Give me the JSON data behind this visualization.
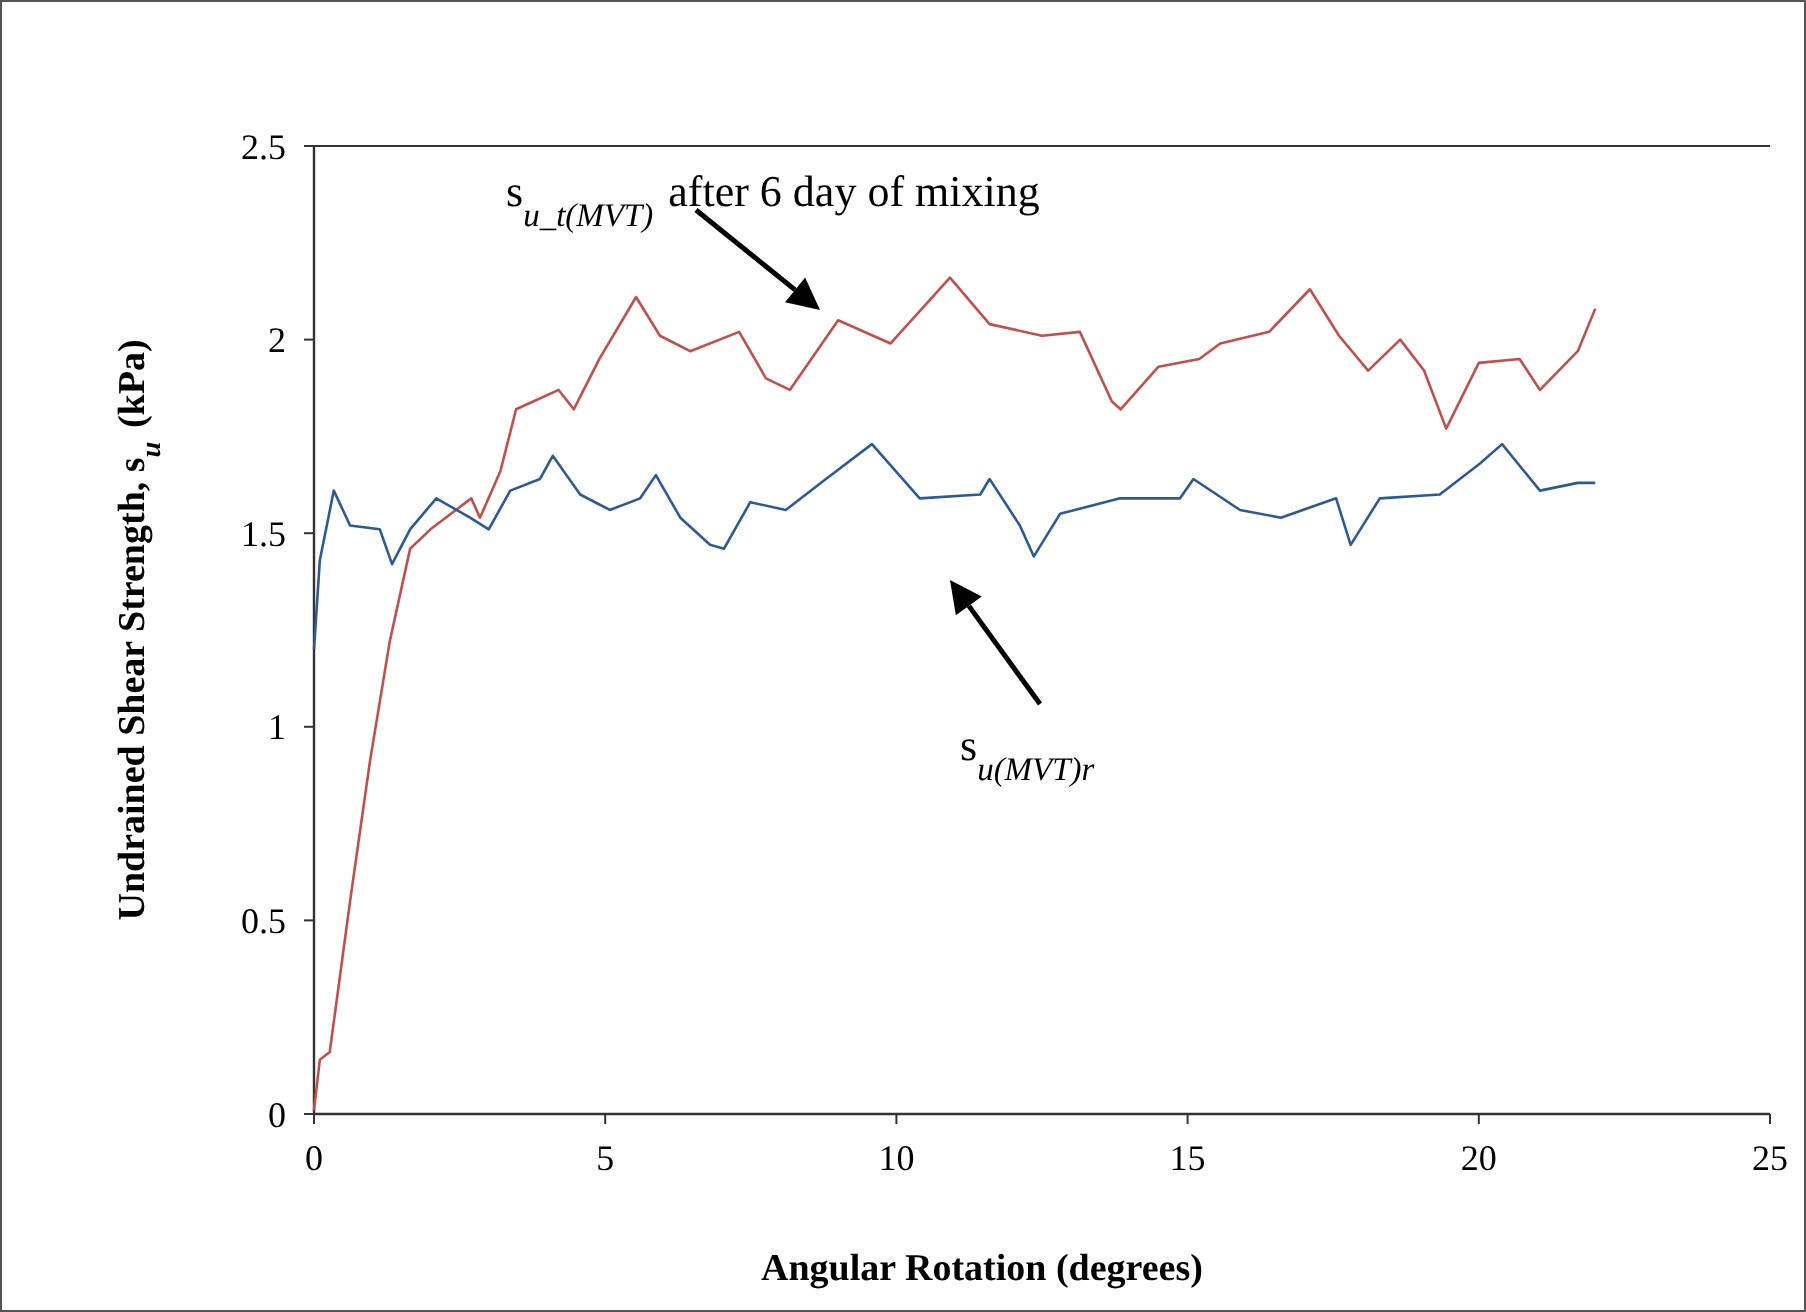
{
  "chart_data": {
    "type": "line",
    "xlabel": "Angular Rotation (degrees)",
    "ylabel": "Undrained Shear Strength, s$_{u}$ (kPa)",
    "xlim": [
      0,
      25
    ],
    "xticks": [
      0,
      5,
      10,
      15,
      20,
      25
    ],
    "ylim": [
      0,
      2.5
    ],
    "yticks": [
      0,
      0.5,
      1,
      1.5,
      2,
      2.5
    ],
    "grid": false,
    "series": [
      {
        "color": "#c0504d",
        "x": [
          0,
          0.1,
          0.27,
          0.62,
          0.96,
          1.3,
          1.65,
          2.0,
          2.7,
          2.85,
          3.2,
          3.47,
          4.2,
          4.46,
          4.9,
          5.53,
          5.94,
          6.46,
          7.3,
          7.76,
          8.17,
          9.0,
          9.9,
          10.92,
          11.6,
          12.5,
          13.15,
          13.7,
          13.85,
          14.5,
          15.2,
          15.56,
          16.4,
          17.1,
          17.6,
          18.1,
          18.65,
          19.06,
          19.44,
          20.0,
          20.7,
          21.05,
          21.7,
          22.0
        ],
        "values": [
          0.01,
          0.14,
          0.16,
          0.55,
          0.91,
          1.22,
          1.46,
          1.51,
          1.59,
          1.54,
          1.66,
          1.82,
          1.87,
          1.82,
          1.95,
          2.11,
          2.01,
          1.97,
          2.02,
          1.9,
          1.87,
          2.05,
          1.99,
          2.16,
          2.04,
          2.01,
          2.02,
          1.84,
          1.82,
          1.93,
          1.95,
          1.99,
          2.02,
          2.13,
          2.01,
          1.92,
          2.0,
          1.92,
          1.77,
          1.94,
          1.95,
          1.87,
          1.97,
          2.08
        ]
      },
      {
        "color": "#2e5a94",
        "x": [
          0,
          0.1,
          0.34,
          0.62,
          1.13,
          1.34,
          1.65,
          2.1,
          2.68,
          3.0,
          3.37,
          3.88,
          4.1,
          4.57,
          5.08,
          5.6,
          5.87,
          6.29,
          6.8,
          7.04,
          7.49,
          8.1,
          8.79,
          9.58,
          10.4,
          11.44,
          11.6,
          12.12,
          12.36,
          12.81,
          13.84,
          14.87,
          15.1,
          15.9,
          16.6,
          17.55,
          17.8,
          18.3,
          19.33,
          20.02,
          20.4,
          21.05,
          21.7,
          22.0
        ],
        "values": [
          1.2,
          1.43,
          1.61,
          1.52,
          1.51,
          1.42,
          1.51,
          1.59,
          1.54,
          1.51,
          1.61,
          1.64,
          1.7,
          1.6,
          1.56,
          1.59,
          1.65,
          1.54,
          1.47,
          1.46,
          1.58,
          1.56,
          1.64,
          1.73,
          1.59,
          1.6,
          1.64,
          1.52,
          1.44,
          1.55,
          1.59,
          1.59,
          1.64,
          1.56,
          1.54,
          1.59,
          1.47,
          1.59,
          1.6,
          1.68,
          1.73,
          1.61,
          1.63,
          1.63
        ]
      }
    ],
    "annotations": [
      "s$_{u_t(MVT)}$ after 6 day of mixing",
      "s$_{u(MVT)r}$"
    ]
  }
}
